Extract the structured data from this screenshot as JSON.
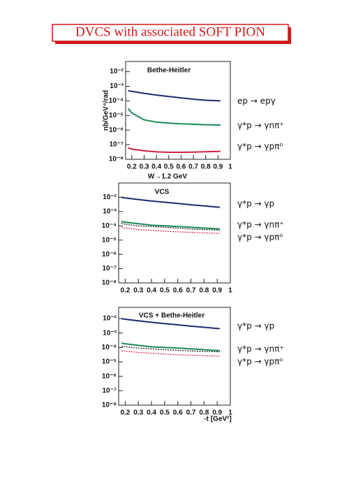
{
  "header": {
    "title": "DVCS with associated SOFT PION"
  },
  "chart_data": [
    {
      "type": "line",
      "title": "Bethe-Heitler",
      "ylabel": "nb/GeV⁴/rad",
      "xlabel": "W→1.2 GeV",
      "log_y": true,
      "xlim": [
        0.15,
        1
      ],
      "ylim": [
        1e-08,
        0.05
      ],
      "xticks": [
        0.2,
        0.3,
        0.4,
        0.5,
        0.6,
        0.7,
        0.8,
        0.9,
        1
      ],
      "yticks": [
        {
          "value": 1e-08,
          "label": "10⁻⁸"
        },
        {
          "value": 1e-07,
          "label": "10⁻⁷"
        },
        {
          "value": 1e-06,
          "label": "10⁻⁶"
        },
        {
          "value": 1e-05,
          "label": "10⁻⁵"
        },
        {
          "value": 0.0001,
          "label": "10⁻⁴"
        },
        {
          "value": 0.001,
          "label": "10⁻³"
        },
        {
          "value": 0.01,
          "label": "10⁻²"
        }
      ],
      "x": [
        0.17,
        0.2,
        0.3,
        0.4,
        0.5,
        0.6,
        0.7,
        0.8,
        0.92
      ],
      "series": [
        {
          "name": "ep → epγ",
          "color": "#1c2a6e",
          "label_color": "#3a6fd8",
          "dash": "solid",
          "values": [
            0.0005,
            0.00045,
            0.00033,
            0.00025,
            0.0002,
            0.00016,
            0.00013,
            0.00011,
            0.0001
          ]
        },
        {
          "name": "γ*p → γnπ⁺",
          "color": "#1a8a55",
          "label_color": "#1a8a55",
          "dash": "solid",
          "values": [
            3e-05,
            1.5e-05,
            5e-06,
            3.5e-06,
            3e-06,
            2.7e-06,
            2.5e-06,
            2.3e-06,
            2.2e-06
          ]
        },
        {
          "name": "γ*p → γpπ⁰",
          "color": "#d02040",
          "label_color": "#111111",
          "dash": "solid",
          "values": [
            6e-08,
            5e-08,
            3.8e-08,
            3.2e-08,
            3e-08,
            3e-08,
            3.1e-08,
            3.3e-08,
            3.5e-08
          ]
        }
      ]
    },
    {
      "type": "line",
      "title": "VCS",
      "log_y": true,
      "xlim": [
        0.15,
        1
      ],
      "ylim": [
        1e-08,
        0.1
      ],
      "xticks": [
        0.2,
        0.3,
        0.4,
        0.5,
        0.6,
        0.7,
        0.8,
        0.9,
        1
      ],
      "yticks": [
        {
          "value": 1e-08,
          "label": "10⁻⁸"
        },
        {
          "value": 1e-07,
          "label": "10⁻⁷"
        },
        {
          "value": 1e-06,
          "label": "10⁻⁶"
        },
        {
          "value": 1e-05,
          "label": "10⁻⁵"
        },
        {
          "value": 0.0001,
          "label": "10⁻⁴"
        },
        {
          "value": 0.001,
          "label": "10⁻³"
        },
        {
          "value": 0.01,
          "label": "10⁻²"
        }
      ],
      "x": [
        0.17,
        0.2,
        0.3,
        0.4,
        0.5,
        0.6,
        0.7,
        0.8,
        0.92
      ],
      "series": [
        {
          "name": "γ*p → γp",
          "color": "#1c2a6e",
          "label_color": "#3a6fd8",
          "dash": "solid",
          "values": [
            0.01,
            0.009,
            0.007,
            0.0055,
            0.0045,
            0.0037,
            0.003,
            0.0025,
            0.002
          ]
        },
        {
          "name": "γ*p → γnπ⁺",
          "color": "#1a8a55",
          "label_color": "#1a8a55",
          "dash": "solid",
          "values": [
            0.0002,
            0.00018,
            0.00014,
            0.00011,
            0.0001,
            9e-05,
            8e-05,
            7e-05,
            6e-05
          ]
        },
        {
          "color": "#111111",
          "dash": "dotted",
          "values": [
            0.00015,
            0.00013,
            0.0001,
            9e-05,
            8e-05,
            7e-05,
            6e-05,
            5.5e-05,
            5e-05
          ]
        },
        {
          "name": "γ*p → γpπ⁰",
          "color": "#d02040",
          "label_color": "#111111",
          "dash": "dotted",
          "values": [
            8e-05,
            7e-05,
            5.5e-05,
            4.8e-05,
            4.2e-05,
            3.8e-05,
            3.5e-05,
            3.2e-05,
            3e-05
          ]
        }
      ]
    },
    {
      "type": "line",
      "title": "VCS + Bethe-Heitler",
      "xlabel": "-t [GeV²]",
      "log_y": true,
      "xlim": [
        0.15,
        1
      ],
      "ylim": [
        1e-08,
        0.06
      ],
      "xticks": [
        0.2,
        0.3,
        0.4,
        0.5,
        0.6,
        0.7,
        0.8,
        0.9,
        1
      ],
      "yticks": [
        {
          "value": 1e-08,
          "label": "10⁻⁸"
        },
        {
          "value": 1e-07,
          "label": "10⁻⁷"
        },
        {
          "value": 1e-06,
          "label": "10⁻⁶"
        },
        {
          "value": 1e-05,
          "label": "10⁻⁵"
        },
        {
          "value": 0.0001,
          "label": "10⁻⁴"
        },
        {
          "value": 0.001,
          "label": "10⁻³"
        },
        {
          "value": 0.01,
          "label": "10⁻²"
        }
      ],
      "x": [
        0.17,
        0.2,
        0.3,
        0.4,
        0.5,
        0.6,
        0.7,
        0.8,
        0.92
      ],
      "series": [
        {
          "name": "γ*p → γp",
          "color": "#1c2a6e",
          "label_color": "#3a6fd8",
          "dash": "solid",
          "values": [
            0.01,
            0.009,
            0.007,
            0.0055,
            0.0045,
            0.0037,
            0.003,
            0.0025,
            0.002
          ]
        },
        {
          "name": "γ*p → γnπ⁺",
          "color": "#1a8a55",
          "label_color": "#1a8a55",
          "dash": "solid",
          "values": [
            0.0002,
            0.00018,
            0.00014,
            0.00011,
            0.0001,
            9e-05,
            8e-05,
            7e-05,
            6e-05
          ]
        },
        {
          "color": "#111111",
          "dash": "dotted",
          "values": [
            0.00012,
            0.00011,
            9e-05,
            8e-05,
            7e-05,
            6.3e-05,
            5.7e-05,
            5.3e-05,
            5e-05
          ]
        },
        {
          "name": "γ*p → γpπ⁰",
          "color": "#d02040",
          "label_color": "#111111",
          "dash": "dotted",
          "values": [
            6e-05,
            5.5e-05,
            4.5e-05,
            4e-05,
            3.5e-05,
            3.1e-05,
            2.9e-05,
            2.7e-05,
            2.5e-05
          ]
        }
      ]
    }
  ]
}
